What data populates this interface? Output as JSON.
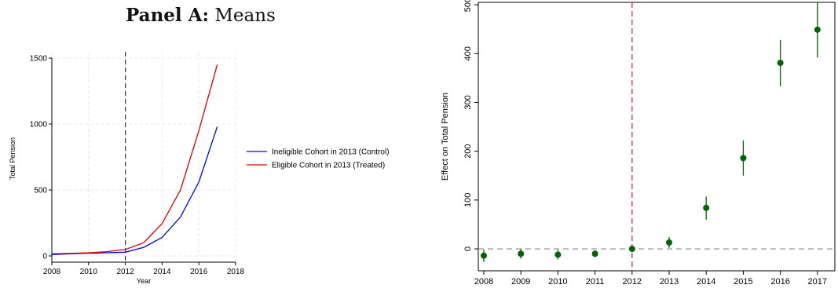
{
  "panel_title": {
    "bold": "Panel A:",
    "rest": " Means"
  },
  "chart_data": [
    {
      "type": "line",
      "title": "",
      "xlabel": "Year",
      "ylabel": "Total Pension",
      "xlim": [
        2008,
        2018
      ],
      "ylim": [
        0,
        1500
      ],
      "x_ticks": [
        2008,
        2010,
        2012,
        2014,
        2016,
        2018
      ],
      "y_ticks": [
        0,
        500,
        1000,
        1500
      ],
      "grid": true,
      "vline": 2012,
      "legend_position": "right",
      "x": [
        2008,
        2009,
        2010,
        2011,
        2012,
        2013,
        2014,
        2015,
        2016,
        2017
      ],
      "series": [
        {
          "name": "Ineligible Cohort in 2013 (Control)",
          "color": "#0000ff",
          "values": [
            10,
            16,
            20,
            24,
            28,
            65,
            140,
            295,
            560,
            980
          ]
        },
        {
          "name": "Eligible Cohort in 2013 (Treated)",
          "color": "#e00000",
          "values": [
            16,
            19,
            24,
            32,
            48,
            100,
            245,
            500,
            950,
            1450
          ]
        }
      ]
    },
    {
      "type": "scatter",
      "title": "",
      "xlabel": "",
      "ylabel": "Effect on Total Pension",
      "categories": [
        "2008",
        "2009",
        "2010",
        "2011",
        "2012",
        "2013",
        "2014",
        "2015",
        "2016",
        "2017"
      ],
      "ylim": [
        -45,
        505
      ],
      "y_ticks": [
        0,
        100,
        200,
        300,
        400,
        500
      ],
      "grid": false,
      "vline": "2012",
      "hline": 0,
      "color": "#006400",
      "vline_color": "#d6336c",
      "points": [
        {
          "estimate": -14,
          "ci_low": -27,
          "ci_high": -2
        },
        {
          "estimate": -10,
          "ci_low": -20,
          "ci_high": 0
        },
        {
          "estimate": -12,
          "ci_low": -22,
          "ci_high": -2
        },
        {
          "estimate": -10,
          "ci_low": -17,
          "ci_high": -3
        },
        {
          "estimate": 0,
          "ci_low": 0,
          "ci_high": 0
        },
        {
          "estimate": 13,
          "ci_low": 2,
          "ci_high": 24
        },
        {
          "estimate": 84,
          "ci_low": 60,
          "ci_high": 107
        },
        {
          "estimate": 186,
          "ci_low": 150,
          "ci_high": 222
        },
        {
          "estimate": 381,
          "ci_low": 333,
          "ci_high": 428
        },
        {
          "estimate": 449,
          "ci_low": 392,
          "ci_high": 506
        }
      ]
    }
  ]
}
